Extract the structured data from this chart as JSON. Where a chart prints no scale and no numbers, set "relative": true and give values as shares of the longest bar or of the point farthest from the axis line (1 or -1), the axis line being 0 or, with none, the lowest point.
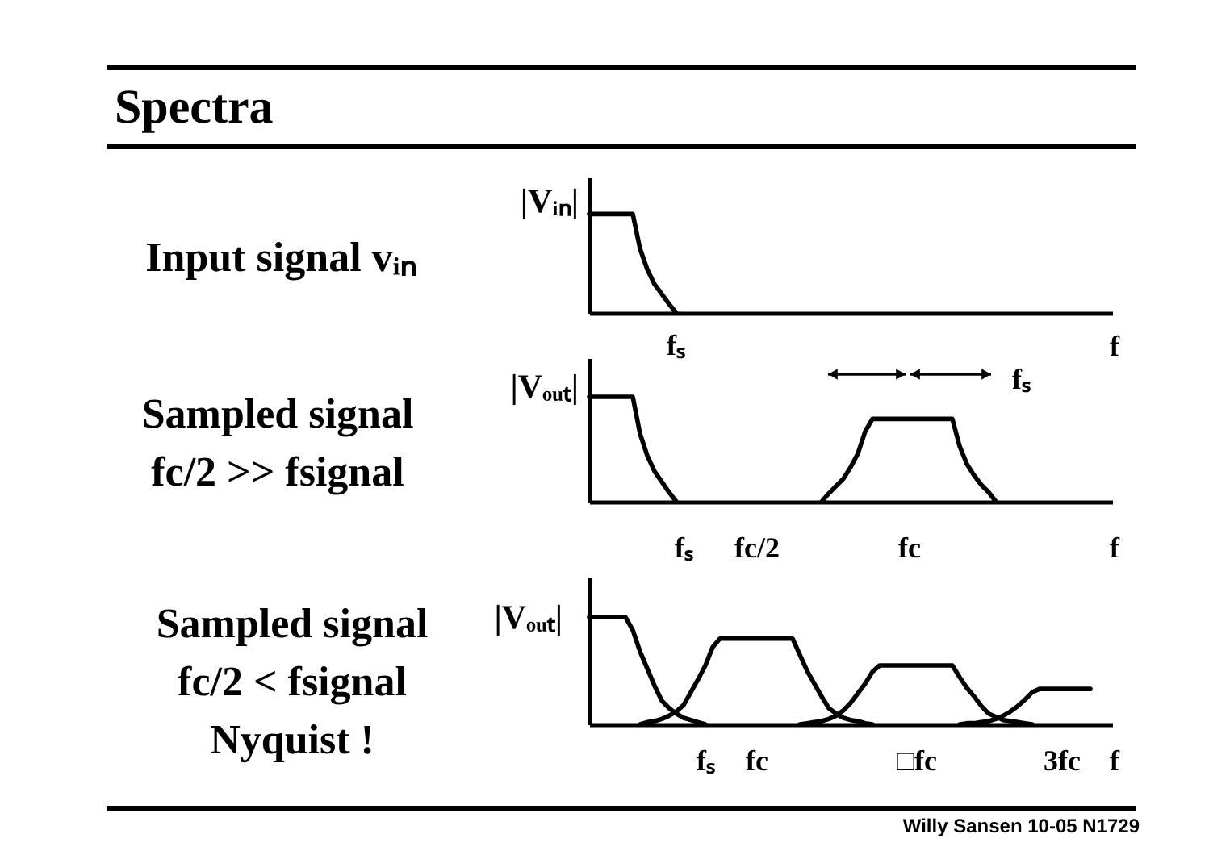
{
  "chart_data": [
    {
      "type": "line",
      "subtitle": "Input signal vᵢₙ",
      "xlabel": "f",
      "ylabel": "|Vᵢₙ|",
      "relative": true,
      "categories": [
        null,
        null,
        null,
        null,
        null,
        null,
        null,
        null,
        null,
        null,
        null,
        null,
        null,
        null,
        null,
        null,
        null,
        null,
        null,
        null,
        null,
        null,
        null,
        null,
        null,
        null,
        null,
        null,
        null,
        null,
        null,
        null,
        null,
        null,
        null,
        null,
        null,
        null,
        null,
        null,
        null,
        null,
        null,
        null,
        null,
        null,
        null,
        null,
        null,
        null,
        null,
        null,
        null,
        null,
        null,
        null,
        null,
        null,
        null,
        null,
        null,
        null,
        null,
        null,
        null,
        null,
        null,
        null,
        null,
        null,
        null
      ],
      "series": [
        {
          "color": "#000000",
          "values": [
            1,
            1,
            1,
            1,
            1,
            1,
            1,
            0.65,
            0.44,
            0.29,
            0.19,
            0.09,
            0,
            null,
            null,
            null,
            null,
            null,
            null,
            null,
            null,
            null,
            null,
            null,
            null,
            null,
            null,
            null,
            null,
            null,
            null,
            null,
            null,
            null,
            null,
            null,
            null,
            null,
            null,
            null,
            null,
            null,
            null,
            null,
            null,
            null,
            null,
            null,
            null,
            null,
            null,
            null,
            null,
            null,
            null,
            null,
            null,
            null,
            null,
            null,
            null,
            null,
            null,
            null,
            null,
            null,
            null,
            null,
            null,
            null,
            null
          ]
        }
      ],
      "annotations": [
        "Spectra",
        "fₛ"
      ]
    },
    {
      "type": "line",
      "subtitle": "Sampled signal\nfc/2 >> fsignal",
      "xlabel": "f",
      "ylabel": "|Vₒᵤₜ|",
      "relative": true,
      "categories": [
        null,
        null,
        null,
        null,
        null,
        null,
        null,
        null,
        null,
        null,
        null,
        null,
        null,
        "fₛ",
        null,
        null,
        null,
        null,
        null,
        null,
        null,
        null,
        null,
        "fc/2",
        null,
        null,
        null,
        null,
        null,
        null,
        null,
        null,
        null,
        null,
        null,
        null,
        null,
        null,
        null,
        null,
        null,
        null,
        null,
        null,
        "fc",
        null,
        null,
        null,
        null,
        null,
        null,
        null,
        null,
        null,
        null,
        null,
        null,
        null,
        null,
        null,
        null,
        null,
        null,
        null,
        null,
        null,
        null,
        null,
        null,
        null,
        null
      ],
      "series": [
        {
          "color": "#000000",
          "values": [
            1,
            1,
            1,
            1,
            1,
            1,
            1,
            0.65,
            0.44,
            0.29,
            0.19,
            0.09,
            0,
            null,
            null,
            null,
            null,
            null,
            null,
            null,
            null,
            null,
            null,
            null,
            null,
            null,
            null,
            null,
            null,
            null,
            null,
            null,
            null,
            null,
            null,
            null,
            null,
            null,
            null,
            null,
            null,
            null,
            null,
            null,
            null,
            null,
            null,
            null,
            null,
            null,
            null,
            null,
            null,
            null,
            null,
            null,
            null,
            null,
            null,
            null,
            null,
            null,
            null,
            null,
            null,
            null,
            null,
            null,
            null,
            null,
            null
          ]
        },
        {
          "color": "#000000",
          "values": [
            null,
            null,
            null,
            null,
            null,
            null,
            null,
            null,
            null,
            null,
            null,
            null,
            null,
            null,
            null,
            null,
            null,
            null,
            null,
            null,
            null,
            null,
            null,
            null,
            null,
            null,
            null,
            null,
            null,
            null,
            null,
            null,
            0,
            0.08,
            0.15,
            0.22,
            0.33,
            0.46,
            0.67,
            0.79,
            0.79,
            0.79,
            0.79,
            0.79,
            0.79,
            0.79,
            0.79,
            0.79,
            0.79,
            0.79,
            0.79,
            0.53,
            0.36,
            0.25,
            0.16,
            0.09,
            0,
            null,
            null,
            null,
            null,
            null,
            null,
            null,
            null,
            null,
            null,
            null,
            null,
            null,
            null
          ]
        }
      ],
      "annotations": [
        "fₛ"
      ]
    },
    {
      "type": "line",
      "subtitle": "Sampled signal\nfc/2 < fsignal\nNyquist !",
      "xlabel": "f",
      "ylabel": "|Vₒᵤₜ|",
      "relative": true,
      "categories": [
        null,
        null,
        null,
        null,
        null,
        null,
        null,
        null,
        null,
        null,
        null,
        null,
        null,
        null,
        null,
        null,
        "fₛ",
        null,
        null,
        null,
        null,
        null,
        null,
        "fc",
        null,
        null,
        null,
        null,
        null,
        null,
        null,
        null,
        null,
        null,
        null,
        null,
        null,
        null,
        null,
        null,
        null,
        null,
        null,
        null,
        null,
        "□fc",
        null,
        null,
        null,
        null,
        null,
        null,
        null,
        null,
        null,
        null,
        null,
        null,
        null,
        null,
        null,
        null,
        null,
        null,
        null,
        "3fc",
        null,
        null,
        null,
        null,
        null
      ],
      "series": [
        {
          "color": "#000000",
          "values": [
            1,
            1,
            1,
            1,
            1,
            1,
            0.88,
            0.68,
            0.52,
            0.36,
            0.22,
            0.15,
            0.1,
            0.06,
            0.04,
            0.02,
            0,
            null,
            null,
            null,
            null,
            null,
            null,
            null,
            null,
            null,
            null,
            null,
            null,
            null,
            null,
            null,
            null,
            null,
            null,
            null,
            null,
            null,
            null,
            null,
            null,
            null,
            null,
            null,
            null,
            null,
            null,
            null,
            null,
            null,
            null,
            null,
            null,
            null,
            null,
            null,
            null,
            null,
            null,
            null,
            null,
            null,
            null,
            null,
            null,
            null,
            null,
            null,
            null,
            null,
            null
          ]
        },
        {
          "color": "#000000",
          "values": [
            null,
            null,
            null,
            null,
            null,
            null,
            null,
            0,
            0.02,
            0.03,
            0.05,
            0.08,
            0.12,
            0.18,
            0.3,
            0.42,
            0.55,
            0.72,
            0.8,
            0.8,
            0.8,
            0.8,
            0.8,
            0.8,
            0.8,
            0.8,
            0.8,
            0.8,
            0.8,
            0.65,
            0.5,
            0.38,
            0.26,
            0.15,
            0.1,
            0.06,
            0.04,
            0.03,
            0.01,
            0,
            null,
            null,
            null,
            null,
            null,
            null,
            null,
            null,
            null,
            null,
            null,
            null,
            null,
            null,
            null,
            null,
            null,
            null,
            null,
            null,
            null,
            null,
            null,
            null,
            null,
            null,
            null,
            null,
            null,
            null,
            null
          ]
        },
        {
          "color": "#000000",
          "values": [
            null,
            null,
            null,
            null,
            null,
            null,
            null,
            null,
            null,
            null,
            null,
            null,
            null,
            null,
            null,
            null,
            null,
            null,
            null,
            null,
            null,
            null,
            null,
            null,
            null,
            null,
            null,
            null,
            null,
            0,
            0.01,
            0.02,
            0.03,
            0.05,
            0.08,
            0.13,
            0.2,
            0.29,
            0.38,
            0.49,
            0.55,
            0.55,
            0.55,
            0.55,
            0.55,
            0.55,
            0.55,
            0.55,
            0.55,
            0.55,
            0.55,
            0.44,
            0.34,
            0.26,
            0.17,
            0.1,
            0.07,
            0.04,
            0.03,
            0.02,
            0.01,
            0,
            null,
            null,
            null,
            null,
            null,
            null,
            null,
            null,
            null
          ]
        },
        {
          "color": "#000000",
          "values": [
            null,
            null,
            null,
            null,
            null,
            null,
            null,
            null,
            null,
            null,
            null,
            null,
            null,
            null,
            null,
            null,
            null,
            null,
            null,
            null,
            null,
            null,
            null,
            null,
            null,
            null,
            null,
            null,
            null,
            null,
            null,
            null,
            null,
            null,
            null,
            null,
            null,
            null,
            null,
            null,
            null,
            null,
            null,
            null,
            null,
            null,
            null,
            null,
            null,
            null,
            null,
            0,
            0.01,
            0.01,
            0.02,
            0.03,
            0.05,
            0.08,
            0.12,
            0.17,
            0.23,
            0.3,
            0.33,
            0.33,
            0.33,
            0.33,
            0.33,
            0.33,
            0.33,
            0.33,
            null
          ]
        }
      ],
      "annotations": [
        "Willy Sansen 10-05 N1729"
      ]
    }
  ]
}
